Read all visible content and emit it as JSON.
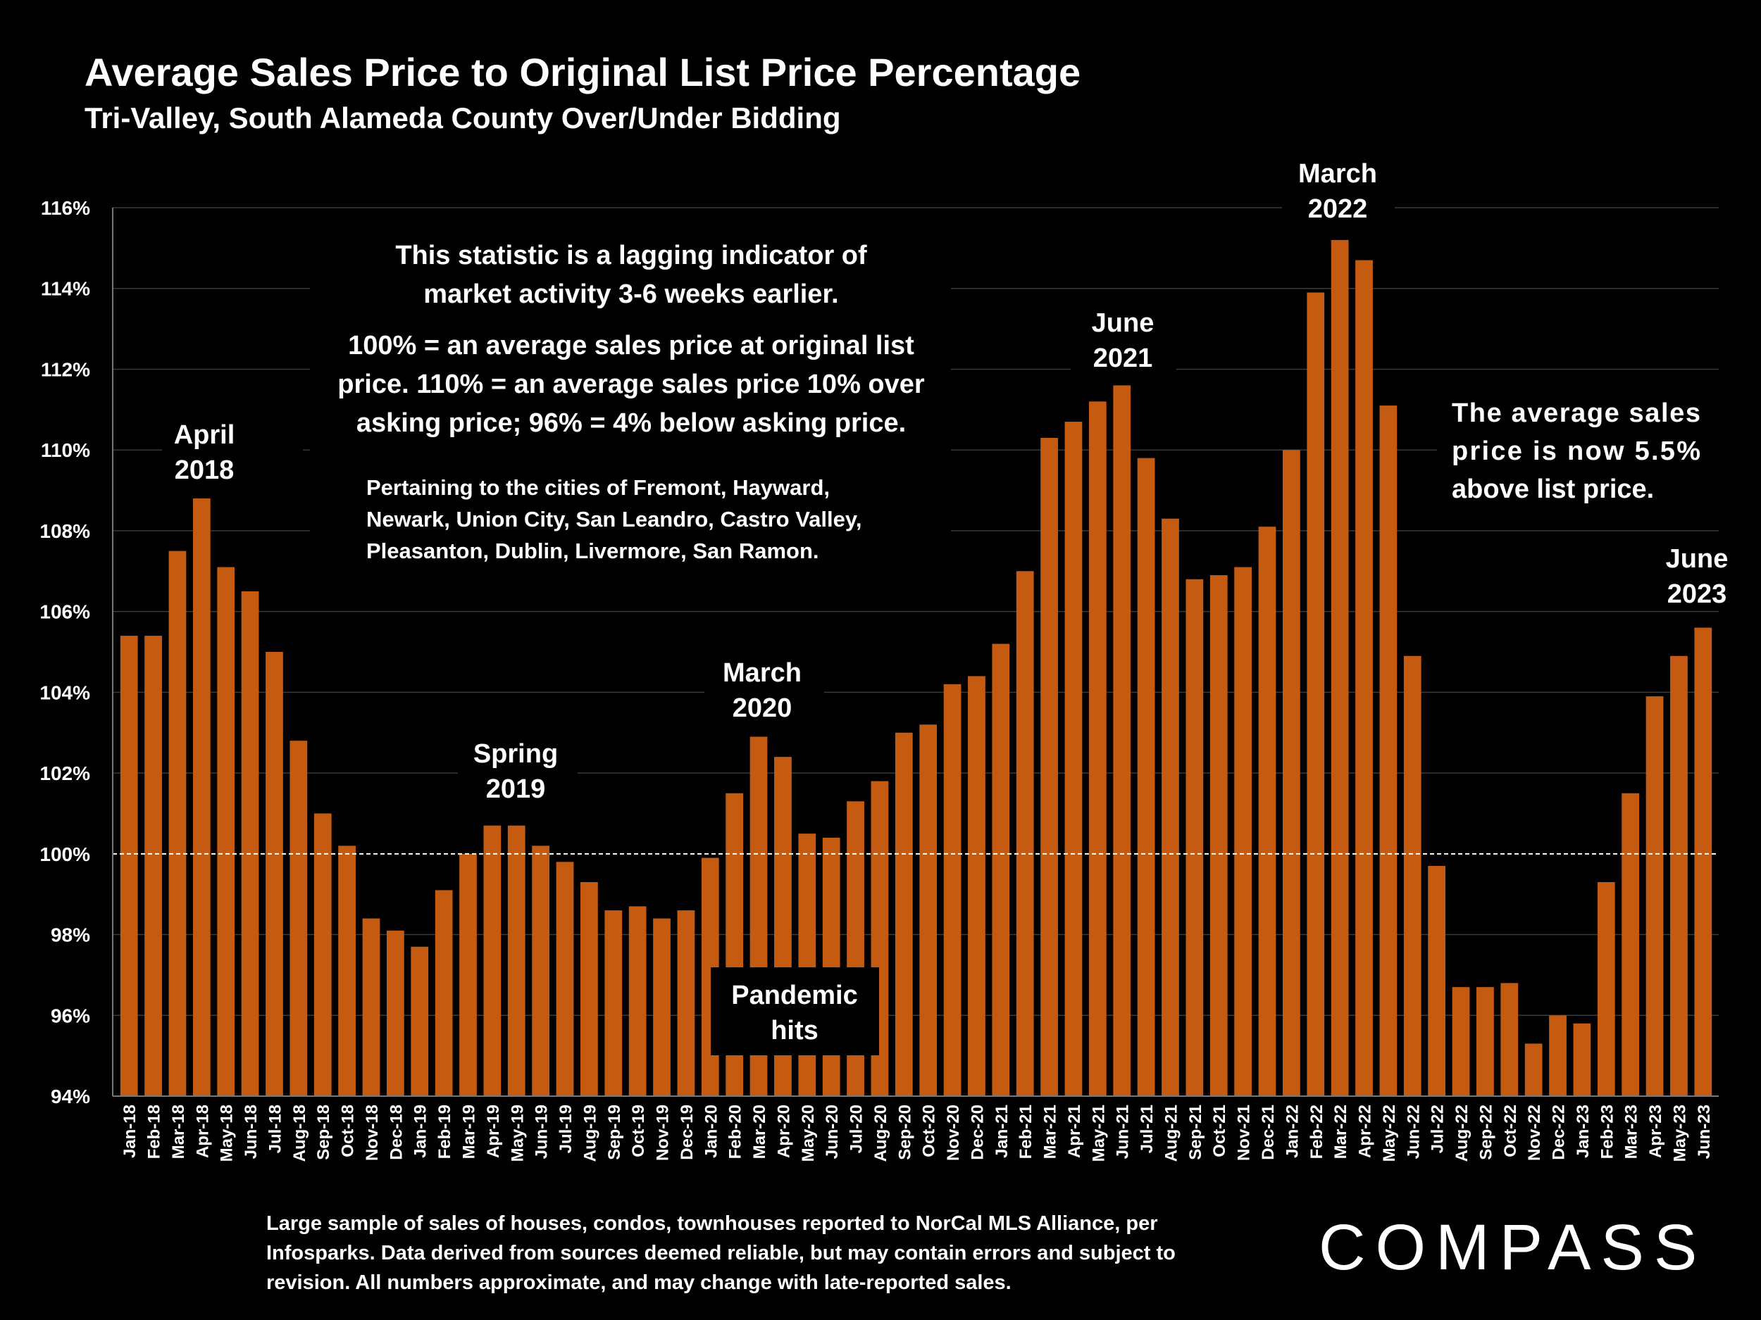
{
  "title": "Average Sales Price to Original List Price Percentage",
  "subtitle": "Tri-Valley, South Alameda County Over/Under Bidding",
  "colors": {
    "bar": "#C55A11",
    "background": "#000000",
    "text": "#FFFFFF",
    "grid": "#3a3a3a"
  },
  "chart_data": {
    "type": "bar",
    "title": "Average Sales Price to Original List Price Percentage",
    "subtitle": "Tri-Valley, South Alameda County Over/Under Bidding",
    "xlabel": "",
    "ylabel": "",
    "ylim": [
      94,
      116
    ],
    "yticks": [
      94,
      96,
      98,
      100,
      102,
      104,
      106,
      108,
      110,
      112,
      114,
      116
    ],
    "ytick_labels": [
      "94%",
      "96%",
      "98%",
      "100%",
      "102%",
      "104%",
      "106%",
      "108%",
      "110%",
      "112%",
      "114%",
      "116%"
    ],
    "grid": true,
    "reference_line": 100,
    "categories": [
      "Jan-18",
      "Feb-18",
      "Mar-18",
      "Apr-18",
      "May-18",
      "Jun-18",
      "Jul-18",
      "Aug-18",
      "Sep-18",
      "Oct-18",
      "Nov-18",
      "Dec-18",
      "Jan-19",
      "Feb-19",
      "Mar-19",
      "Apr-19",
      "May-19",
      "Jun-19",
      "Jul-19",
      "Aug-19",
      "Sep-19",
      "Oct-19",
      "Nov-19",
      "Dec-19",
      "Jan-20",
      "Feb-20",
      "Mar-20",
      "Apr-20",
      "May-20",
      "Jun-20",
      "Jul-20",
      "Aug-20",
      "Sep-20",
      "Oct-20",
      "Nov-20",
      "Dec-20",
      "Jan-21",
      "Feb-21",
      "Mar-21",
      "Apr-21",
      "May-21",
      "Jun-21",
      "Jul-21",
      "Aug-21",
      "Sep-21",
      "Oct-21",
      "Nov-21",
      "Dec-21",
      "Jan-22",
      "Feb-22",
      "Mar-22",
      "Apr-22",
      "May-22",
      "Jun-22",
      "Jul-22",
      "Aug-22",
      "Sep-22",
      "Oct-22",
      "Nov-22",
      "Dec-22",
      "Jan-23",
      "Feb-23",
      "Mar-23",
      "Apr-23",
      "May-23",
      "Jun-23"
    ],
    "values": [
      105.4,
      105.4,
      107.5,
      108.8,
      107.1,
      106.5,
      105.0,
      102.8,
      101.0,
      100.2,
      98.4,
      98.1,
      97.7,
      99.1,
      100.0,
      100.7,
      100.7,
      100.2,
      99.8,
      99.3,
      98.6,
      98.7,
      98.4,
      98.6,
      99.9,
      101.5,
      102.9,
      102.4,
      100.5,
      100.4,
      101.3,
      101.8,
      103.0,
      103.2,
      104.2,
      104.4,
      105.2,
      107.0,
      110.3,
      110.7,
      111.2,
      111.6,
      109.8,
      108.3,
      106.8,
      106.9,
      107.1,
      108.1,
      110.0,
      113.9,
      115.2,
      114.7,
      111.1,
      104.9,
      99.7,
      96.7,
      96.7,
      96.8,
      95.3,
      96.0,
      95.8,
      99.3,
      101.5,
      103.9,
      104.9,
      105.6
    ],
    "annotations": [
      {
        "id": "apr2018",
        "lines": [
          "April",
          "2018"
        ]
      },
      {
        "id": "spring2019",
        "lines": [
          "Spring",
          "2019"
        ]
      },
      {
        "id": "mar2020",
        "lines": [
          "March",
          "2020"
        ]
      },
      {
        "id": "pandemic",
        "lines": [
          "Pandemic",
          "hits"
        ]
      },
      {
        "id": "jun2021",
        "lines": [
          "June",
          "2021"
        ]
      },
      {
        "id": "mar2022",
        "lines": [
          "March",
          "2022"
        ]
      },
      {
        "id": "jun2023",
        "lines": [
          "June",
          "2023"
        ]
      }
    ]
  },
  "notes": {
    "lagging": [
      "This statistic is a lagging indicator of",
      "market activity 3-6 weeks earlier."
    ],
    "definition": [
      "100% = an average sales price at original list",
      "price. 110% = an average sales price 10% over",
      "asking price; 96% = 4% below asking price."
    ],
    "cities": [
      "Pertaining to the cities of Fremont, Hayward,",
      "Newark, Union City, San Leandro, Castro Valley,",
      "Pleasanton, Dublin, Livermore, San Ramon."
    ],
    "current": [
      "The average sales",
      "price is now 5.5%",
      "above list price."
    ]
  },
  "footnote": [
    "Large sample of sales of houses, condos, townhouses reported to NorCal MLS Alliance, per",
    "Infosparks. Data derived from sources deemed reliable, but may contain errors and subject to",
    "revision. All numbers approximate, and may change with late-reported sales."
  ],
  "logo": "COMPASS"
}
